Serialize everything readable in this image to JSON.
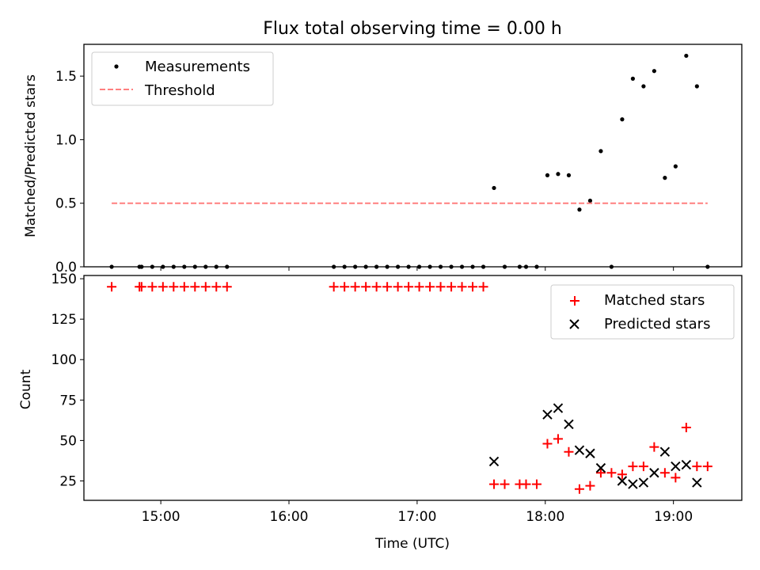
{
  "figure": {
    "title": "Flux total observing time = 0.00 h"
  },
  "chart_data": [
    {
      "type": "scatter",
      "panel": "top",
      "ylabel": "Matched/Predicted stars",
      "ylim": [
        0,
        1.75
      ],
      "yticks": [
        0.0,
        0.5,
        1.0,
        1.5
      ],
      "xlim": [
        "14:24",
        "19:32"
      ],
      "legend_placement": "upper-left",
      "series": [
        {
          "name": "Measurements",
          "marker": "dot",
          "color": "#000000",
          "points": [
            [
              "14:37",
              0
            ],
            [
              "14:50",
              0
            ],
            [
              "14:51",
              0
            ],
            [
              "14:56",
              0
            ],
            [
              "15:01",
              0
            ],
            [
              "15:06",
              0
            ],
            [
              "15:11",
              0
            ],
            [
              "15:16",
              0
            ],
            [
              "15:21",
              0
            ],
            [
              "15:26",
              0
            ],
            [
              "15:31",
              0
            ],
            [
              "16:21",
              0
            ],
            [
              "16:26",
              0
            ],
            [
              "16:31",
              0
            ],
            [
              "16:36",
              0
            ],
            [
              "16:41",
              0
            ],
            [
              "16:46",
              0
            ],
            [
              "16:51",
              0
            ],
            [
              "16:56",
              0
            ],
            [
              "17:01",
              0
            ],
            [
              "17:06",
              0
            ],
            [
              "17:11",
              0
            ],
            [
              "17:16",
              0
            ],
            [
              "17:21",
              0
            ],
            [
              "17:26",
              0
            ],
            [
              "17:31",
              0
            ],
            [
              "17:36",
              0.62
            ],
            [
              "17:41",
              0
            ],
            [
              "17:48",
              0
            ],
            [
              "17:51",
              0
            ],
            [
              "17:56",
              0
            ],
            [
              "18:01",
              0.72
            ],
            [
              "18:06",
              0.73
            ],
            [
              "18:11",
              0.72
            ],
            [
              "18:16",
              0.45
            ],
            [
              "18:21",
              0.52
            ],
            [
              "18:26",
              0.91
            ],
            [
              "18:31",
              0
            ],
            [
              "18:36",
              1.16
            ],
            [
              "18:41",
              1.48
            ],
            [
              "18:46",
              1.42
            ],
            [
              "18:51",
              1.54
            ],
            [
              "18:56",
              0.7
            ],
            [
              "19:01",
              0.79
            ],
            [
              "19:06",
              1.66
            ],
            [
              "19:11",
              1.42
            ],
            [
              "19:16",
              0
            ]
          ]
        },
        {
          "name": "Threshold",
          "marker": "dashed-line",
          "color": "#ff7f7f",
          "points": [
            [
              "14:37",
              0.5
            ],
            [
              "19:16",
              0.5
            ]
          ]
        }
      ]
    },
    {
      "type": "scatter",
      "panel": "bottom",
      "xlabel": "Time (UTC)",
      "ylabel": "Count",
      "ylim": [
        13,
        152
      ],
      "yticks": [
        25,
        50,
        75,
        100,
        125,
        150
      ],
      "xlim": [
        "14:24",
        "19:32"
      ],
      "xticks": [
        "15:00",
        "16:00",
        "17:00",
        "18:00",
        "19:00"
      ],
      "legend_placement": "upper-right",
      "series": [
        {
          "name": "Matched stars",
          "marker": "plus",
          "color": "#ff0000",
          "points": [
            [
              "14:37",
              145
            ],
            [
              "14:50",
              145
            ],
            [
              "14:51",
              145
            ],
            [
              "14:56",
              145
            ],
            [
              "15:01",
              145
            ],
            [
              "15:06",
              145
            ],
            [
              "15:11",
              145
            ],
            [
              "15:16",
              145
            ],
            [
              "15:21",
              145
            ],
            [
              "15:26",
              145
            ],
            [
              "15:31",
              145
            ],
            [
              "16:21",
              145
            ],
            [
              "16:26",
              145
            ],
            [
              "16:31",
              145
            ],
            [
              "16:36",
              145
            ],
            [
              "16:41",
              145
            ],
            [
              "16:46",
              145
            ],
            [
              "16:51",
              145
            ],
            [
              "16:56",
              145
            ],
            [
              "17:01",
              145
            ],
            [
              "17:06",
              145
            ],
            [
              "17:11",
              145
            ],
            [
              "17:16",
              145
            ],
            [
              "17:21",
              145
            ],
            [
              "17:26",
              145
            ],
            [
              "17:31",
              145
            ],
            [
              "17:36",
              23
            ],
            [
              "17:41",
              23
            ],
            [
              "17:48",
              23
            ],
            [
              "17:51",
              23
            ],
            [
              "17:56",
              23
            ],
            [
              "18:01",
              48
            ],
            [
              "18:06",
              51
            ],
            [
              "18:11",
              43
            ],
            [
              "18:16",
              20
            ],
            [
              "18:21",
              22
            ],
            [
              "18:26",
              30
            ],
            [
              "18:31",
              30
            ],
            [
              "18:36",
              29
            ],
            [
              "18:41",
              34
            ],
            [
              "18:46",
              34
            ],
            [
              "18:51",
              46
            ],
            [
              "18:56",
              30
            ],
            [
              "19:01",
              27
            ],
            [
              "19:06",
              58
            ],
            [
              "19:11",
              34
            ],
            [
              "19:16",
              34
            ]
          ]
        },
        {
          "name": "Predicted stars",
          "marker": "x",
          "color": "#000000",
          "points": [
            [
              "17:36",
              37
            ],
            [
              "18:01",
              66
            ],
            [
              "18:06",
              70
            ],
            [
              "18:11",
              60
            ],
            [
              "18:16",
              44
            ],
            [
              "18:21",
              42
            ],
            [
              "18:26",
              33
            ],
            [
              "18:36",
              25
            ],
            [
              "18:41",
              23
            ],
            [
              "18:46",
              24
            ],
            [
              "18:51",
              30
            ],
            [
              "18:56",
              43
            ],
            [
              "19:01",
              34
            ],
            [
              "19:06",
              35
            ],
            [
              "19:11",
              24
            ]
          ]
        }
      ]
    }
  ]
}
